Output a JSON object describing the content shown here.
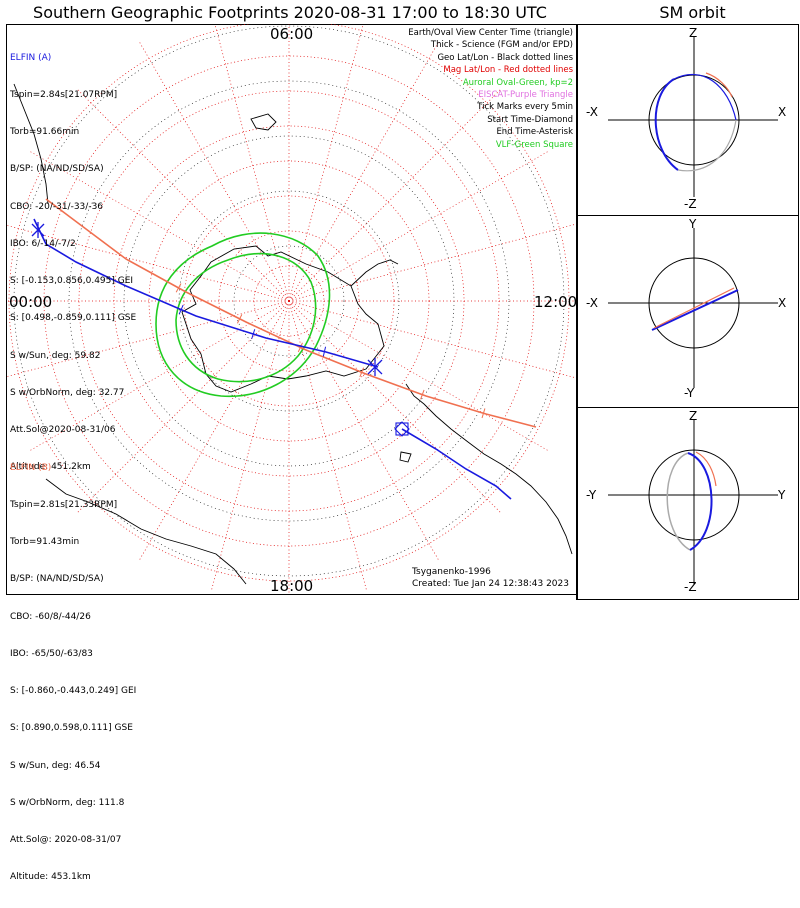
{
  "title": "Southern Geographic Footprints 2020-08-31 17:00 to 18:30 UTC",
  "sm_title": "SM orbit",
  "clock_labels": {
    "top": "06:00",
    "left": "00:00",
    "right": "12:00",
    "bottom": "18:00"
  },
  "elfin_a": {
    "header": "ELFIN (A)",
    "color": "#1a1adf",
    "lines": [
      "Tspin=2.84s[21.07RPM]",
      "Torb=91.66min",
      "B/SP: (NA/ND/SD/SA)",
      "CBO: -20/-31/-33/-36",
      "IBO: 6/-14/-7/2",
      "S: [-0.153,0.856,0.495] GEI",
      "S: [0.498,-0.859,0.111] GSE",
      "S w/Sun, deg: 59.82",
      "S w/OrbNorm, deg: 32.77",
      "Att.Sol@2020-08-31/06",
      "Altitude: 451.2km"
    ]
  },
  "elfin_b": {
    "header": "ELFIN (B)",
    "color": "#f07050",
    "lines": [
      "Tspin=2.81s[21.33RPM]",
      "Torb=91.43min",
      "B/SP: (NA/ND/SD/SA)",
      "CBO: -60/8/-44/26",
      "IBO: -65/50/-63/83",
      "S: [-0.860,-0.443,0.249] GEI",
      "S: [0.890,0.598,0.111] GSE",
      "S w/Sun, deg: 46.54",
      "S w/OrbNorm, deg: 111.8",
      "Att.Sol@: 2020-08-31/07",
      "Altitude: 453.1km"
    ]
  },
  "legend": [
    {
      "text": "Earth/Oval View Center Time (triangle)",
      "color": "#000000"
    },
    {
      "text": "Thick - Science (FGM and/or EPD)",
      "color": "#000000"
    },
    {
      "text": "Geo Lat/Lon - Black dotted lines",
      "color": "#000000"
    },
    {
      "text": "Mag Lat/Lon - Red dotted lines",
      "color": "#e00000"
    },
    {
      "text": "Auroral Oval-Green, kp=2",
      "color": "#22cc22"
    },
    {
      "text": "EISCAT-Purple Triangle",
      "color": "#e070e0"
    },
    {
      "text": "Tick Marks every 5min",
      "color": "#000000"
    },
    {
      "text": "Start Time-Diamond",
      "color": "#000000"
    },
    {
      "text": "End Time-Asterisk",
      "color": "#000000"
    },
    {
      "text": "VLF-Green Square",
      "color": "#22cc22"
    }
  ],
  "credits": {
    "author": "Tsyganenko-1996",
    "created": "Created: Tue Jan 24 12:38:43 2023"
  },
  "sm_panels": [
    {
      "top": "Z",
      "bottom": "-Z",
      "left": "-X",
      "right": "X"
    },
    {
      "top": "Y",
      "bottom": "-Y",
      "left": "-X",
      "right": "X"
    },
    {
      "top": "Z",
      "bottom": "-Z",
      "left": "-Y",
      "right": "Y"
    }
  ],
  "colors": {
    "orbit_a": "#1a1adf",
    "orbit_b": "#f07050",
    "oval": "#22cc22",
    "mag_grid": "#e00000",
    "geo_grid": "#000000"
  }
}
